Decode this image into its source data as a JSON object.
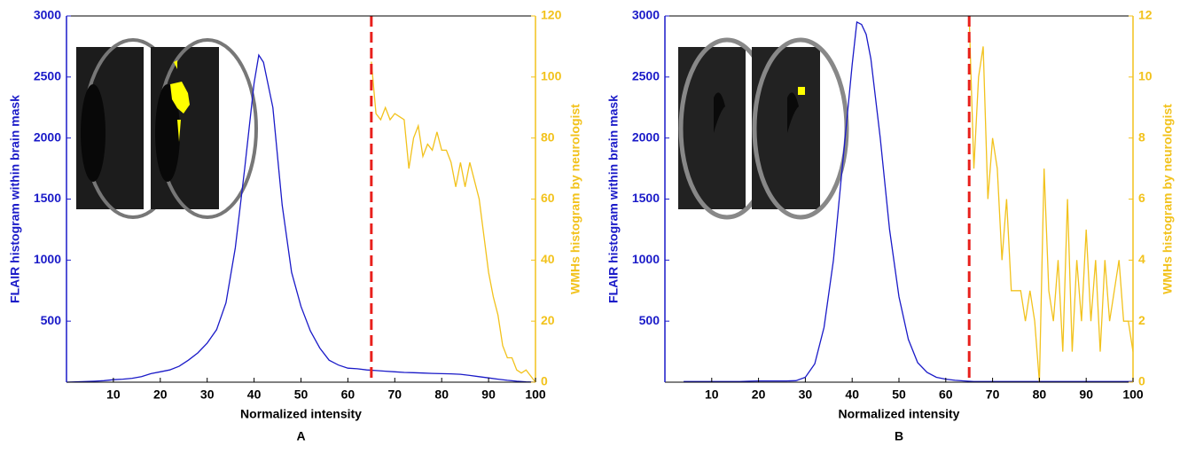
{
  "chart_data": [
    {
      "type": "line",
      "panel_label": "A",
      "xlabel": "Normalized intensity",
      "ylabel": "FLAIR histogram within brain mask",
      "y2label": "WMHs histogram by neurologist",
      "xlim": [
        0,
        100
      ],
      "xticks": [
        10,
        20,
        30,
        40,
        50,
        60,
        70,
        80,
        90,
        100
      ],
      "ylim": [
        0,
        3000
      ],
      "yticks": [
        500,
        1000,
        1500,
        2000,
        2500,
        3000
      ],
      "y2lim": [
        0,
        120
      ],
      "y2ticks": [
        0,
        20,
        40,
        60,
        80,
        100,
        120
      ],
      "vline": {
        "x": 65,
        "color": "#e8201c"
      },
      "series": [
        {
          "color": "#1a1ac8",
          "x": [
            0,
            2,
            4,
            6,
            8,
            10,
            12,
            14,
            16,
            18,
            20,
            22,
            24,
            26,
            28,
            30,
            32,
            34,
            36,
            38,
            40,
            41,
            42,
            44,
            46,
            48,
            50,
            52,
            54,
            56,
            58,
            60,
            62,
            64,
            66,
            68,
            70,
            72,
            74,
            76,
            78,
            80,
            82,
            84,
            86,
            88,
            90,
            92,
            94,
            96,
            98,
            100
          ],
          "values": [
            0,
            2,
            5,
            8,
            12,
            20,
            25,
            32,
            45,
            70,
            85,
            100,
            130,
            180,
            240,
            320,
            430,
            650,
            1100,
            1750,
            2450,
            2680,
            2620,
            2250,
            1450,
            900,
            620,
            420,
            280,
            180,
            140,
            115,
            110,
            100,
            95,
            90,
            85,
            80,
            78,
            75,
            72,
            70,
            68,
            65,
            55,
            45,
            35,
            25,
            15,
            8,
            3,
            0
          ]
        },
        {
          "color": "#f2c21c",
          "axis": "y2",
          "x": [
            65,
            66,
            67,
            68,
            69,
            70,
            71,
            72,
            73,
            74,
            75,
            76,
            77,
            78,
            79,
            80,
            81,
            82,
            83,
            84,
            85,
            86,
            87,
            88,
            89,
            90,
            91,
            92,
            93,
            94,
            95,
            96,
            97,
            98,
            99,
            100
          ],
          "values": [
            105,
            88,
            86,
            90,
            86,
            88,
            87,
            86,
            70,
            80,
            84,
            74,
            78,
            76,
            82,
            76,
            76,
            72,
            64,
            72,
            64,
            72,
            66,
            60,
            48,
            36,
            28,
            22,
            12,
            8,
            8,
            4,
            3,
            4,
            2,
            0
          ]
        }
      ]
    },
    {
      "type": "line",
      "panel_label": "B",
      "xlabel": "Normalized intensity",
      "ylabel": "FLAIR histogram within brain mask",
      "y2label": "WMHs histogram by neurologist",
      "xlim": [
        0,
        100
      ],
      "xticks": [
        10,
        20,
        30,
        40,
        50,
        60,
        70,
        80,
        90,
        100
      ],
      "ylim": [
        0,
        3000
      ],
      "yticks": [
        500,
        1000,
        1500,
        2000,
        2500,
        3000
      ],
      "y2lim": [
        0,
        12
      ],
      "y2ticks": [
        0,
        2,
        4,
        6,
        8,
        10,
        12
      ],
      "vline": {
        "x": 65,
        "color": "#e8201c"
      },
      "series": [
        {
          "color": "#1a1ac8",
          "x": [
            4,
            6,
            8,
            10,
            12,
            14,
            16,
            18,
            20,
            22,
            24,
            26,
            28,
            30,
            32,
            34,
            36,
            38,
            40,
            41,
            42,
            43,
            44,
            46,
            48,
            50,
            52,
            54,
            56,
            58,
            60,
            62,
            64,
            66,
            68,
            70,
            72,
            74,
            76,
            78,
            80,
            82,
            84,
            86,
            88,
            90,
            92,
            94,
            96,
            98,
            100
          ],
          "values": [
            5,
            5,
            5,
            5,
            5,
            5,
            5,
            8,
            10,
            10,
            10,
            10,
            12,
            40,
            150,
            450,
            1000,
            1800,
            2600,
            2950,
            2930,
            2850,
            2650,
            2000,
            1250,
            700,
            350,
            160,
            80,
            40,
            25,
            15,
            10,
            5,
            5,
            5,
            5,
            5,
            5,
            5,
            5,
            5,
            5,
            5,
            5,
            5,
            5,
            5,
            5,
            5,
            5
          ]
        },
        {
          "color": "#f2c21c",
          "axis": "y2",
          "x": [
            65,
            66,
            67,
            68,
            69,
            70,
            71,
            72,
            73,
            74,
            75,
            76,
            77,
            78,
            79,
            80,
            81,
            82,
            83,
            84,
            85,
            86,
            87,
            88,
            89,
            90,
            91,
            92,
            93,
            94,
            95,
            96,
            97,
            98,
            99,
            100
          ],
          "values": [
            12,
            7,
            10,
            11,
            6,
            8,
            7,
            4,
            6,
            3,
            3,
            3,
            2,
            3,
            2,
            0,
            7,
            3,
            2,
            4,
            1,
            6,
            1,
            4,
            2,
            5,
            2,
            4,
            1,
            4,
            2,
            3,
            4,
            2,
            2,
            1
          ]
        }
      ]
    }
  ]
}
